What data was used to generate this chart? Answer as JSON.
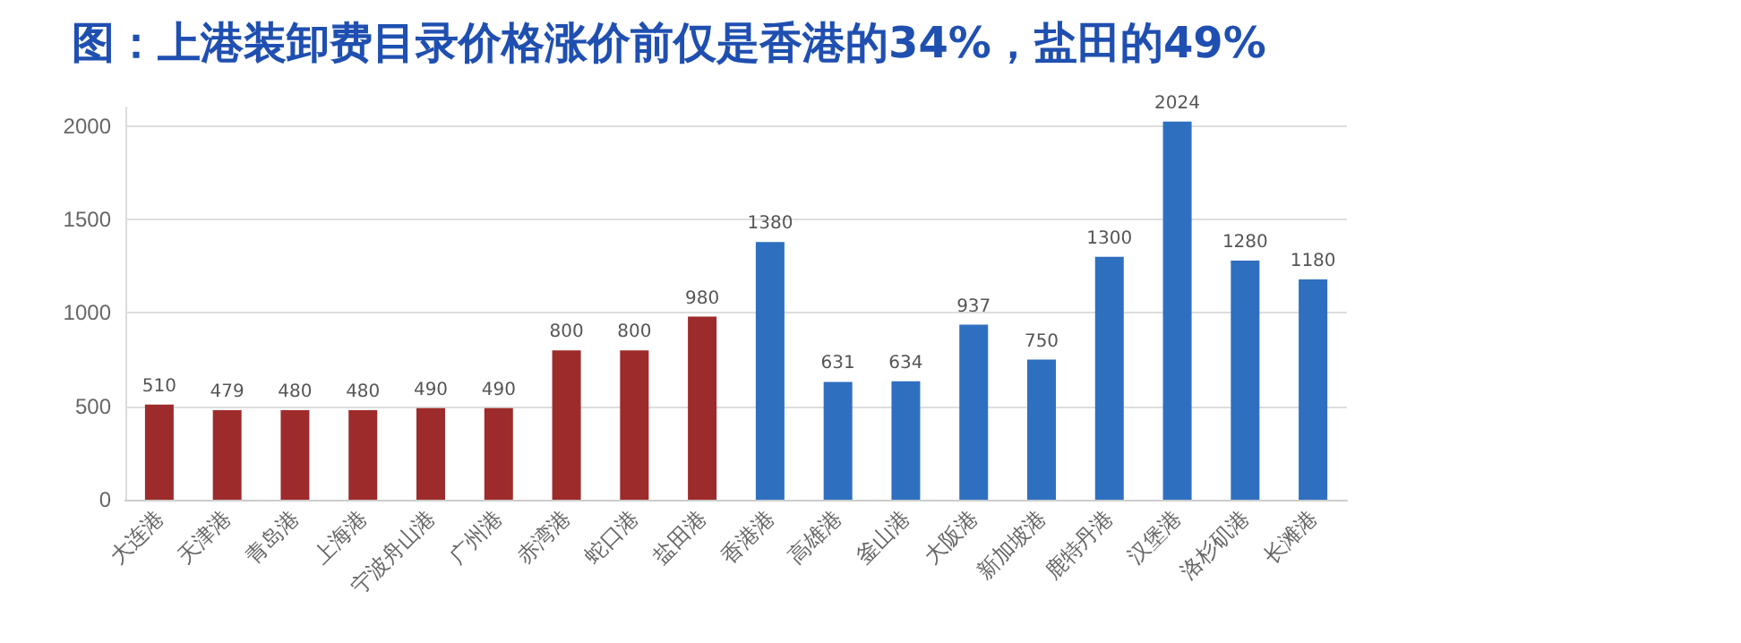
{
  "chart_data": {
    "type": "bar",
    "title": "图：上港装卸费目录价格涨价前仅是香港的34%，盐田的49%",
    "categories": [
      "大连港",
      "天津港",
      "青岛港",
      "上海港",
      "宁波舟山港",
      "广州港",
      "赤湾港",
      "蛇口港",
      "盐田港",
      "香港港",
      "高雄港",
      "釜山港",
      "大阪港",
      "新加坡港",
      "鹿特丹港",
      "汉堡港",
      "洛杉矶港",
      "长滩港"
    ],
    "values": [
      510,
      479,
      480,
      480,
      490,
      490,
      800,
      800,
      980,
      1380,
      631,
      634,
      937,
      750,
      1300,
      2024,
      1280,
      1180
    ],
    "colors": [
      "#9e2b2b",
      "#9e2b2b",
      "#9e2b2b",
      "#9e2b2b",
      "#9e2b2b",
      "#9e2b2b",
      "#9e2b2b",
      "#9e2b2b",
      "#9e2b2b",
      "#2f6fc0",
      "#2f6fc0",
      "#2f6fc0",
      "#2f6fc0",
      "#2f6fc0",
      "#2f6fc0",
      "#2f6fc0",
      "#2f6fc0",
      "#2f6fc0"
    ],
    "ylim": [
      0,
      2100
    ],
    "yticks": [
      0,
      500,
      1000,
      1500,
      2000
    ],
    "grid": "y",
    "data_labels": true
  }
}
